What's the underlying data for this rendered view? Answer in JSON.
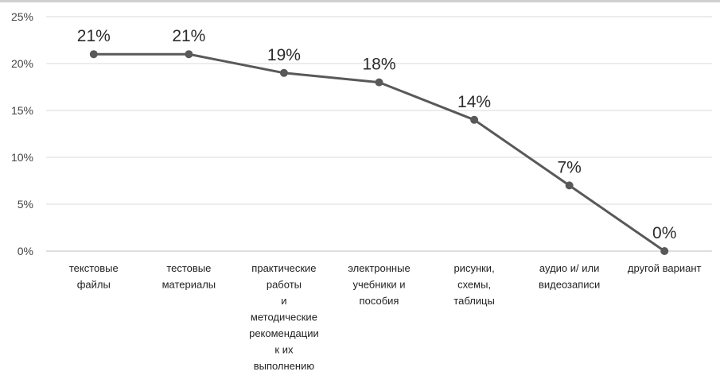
{
  "chart_data": {
    "type": "line",
    "title": "",
    "xlabel": "",
    "ylabel": "",
    "ylim": [
      0,
      25
    ],
    "y_ticks": [
      "0%",
      "5%",
      "10%",
      "15%",
      "20%",
      "25%"
    ],
    "grid": "horizontal",
    "legend": "none",
    "categories": [
      [
        "текстовые",
        "файлы"
      ],
      [
        "тестовые",
        "материалы"
      ],
      [
        "практические",
        "работы",
        "и",
        "методические",
        "рекомендации",
        "к их",
        "выполнению"
      ],
      [
        "электронные",
        "учебники и",
        "пособия"
      ],
      [
        "рисунки,",
        "схемы,",
        "таблицы"
      ],
      [
        "аудио и/ или",
        "видеозаписи"
      ],
      [
        "другой вариант"
      ]
    ],
    "values": [
      21,
      21,
      19,
      18,
      14,
      7,
      0
    ],
    "data_labels": [
      "21%",
      "21%",
      "19%",
      "18%",
      "14%",
      "7%",
      "0%"
    ],
    "line_color": "#595959",
    "grid_color": "#d9d9d9"
  }
}
